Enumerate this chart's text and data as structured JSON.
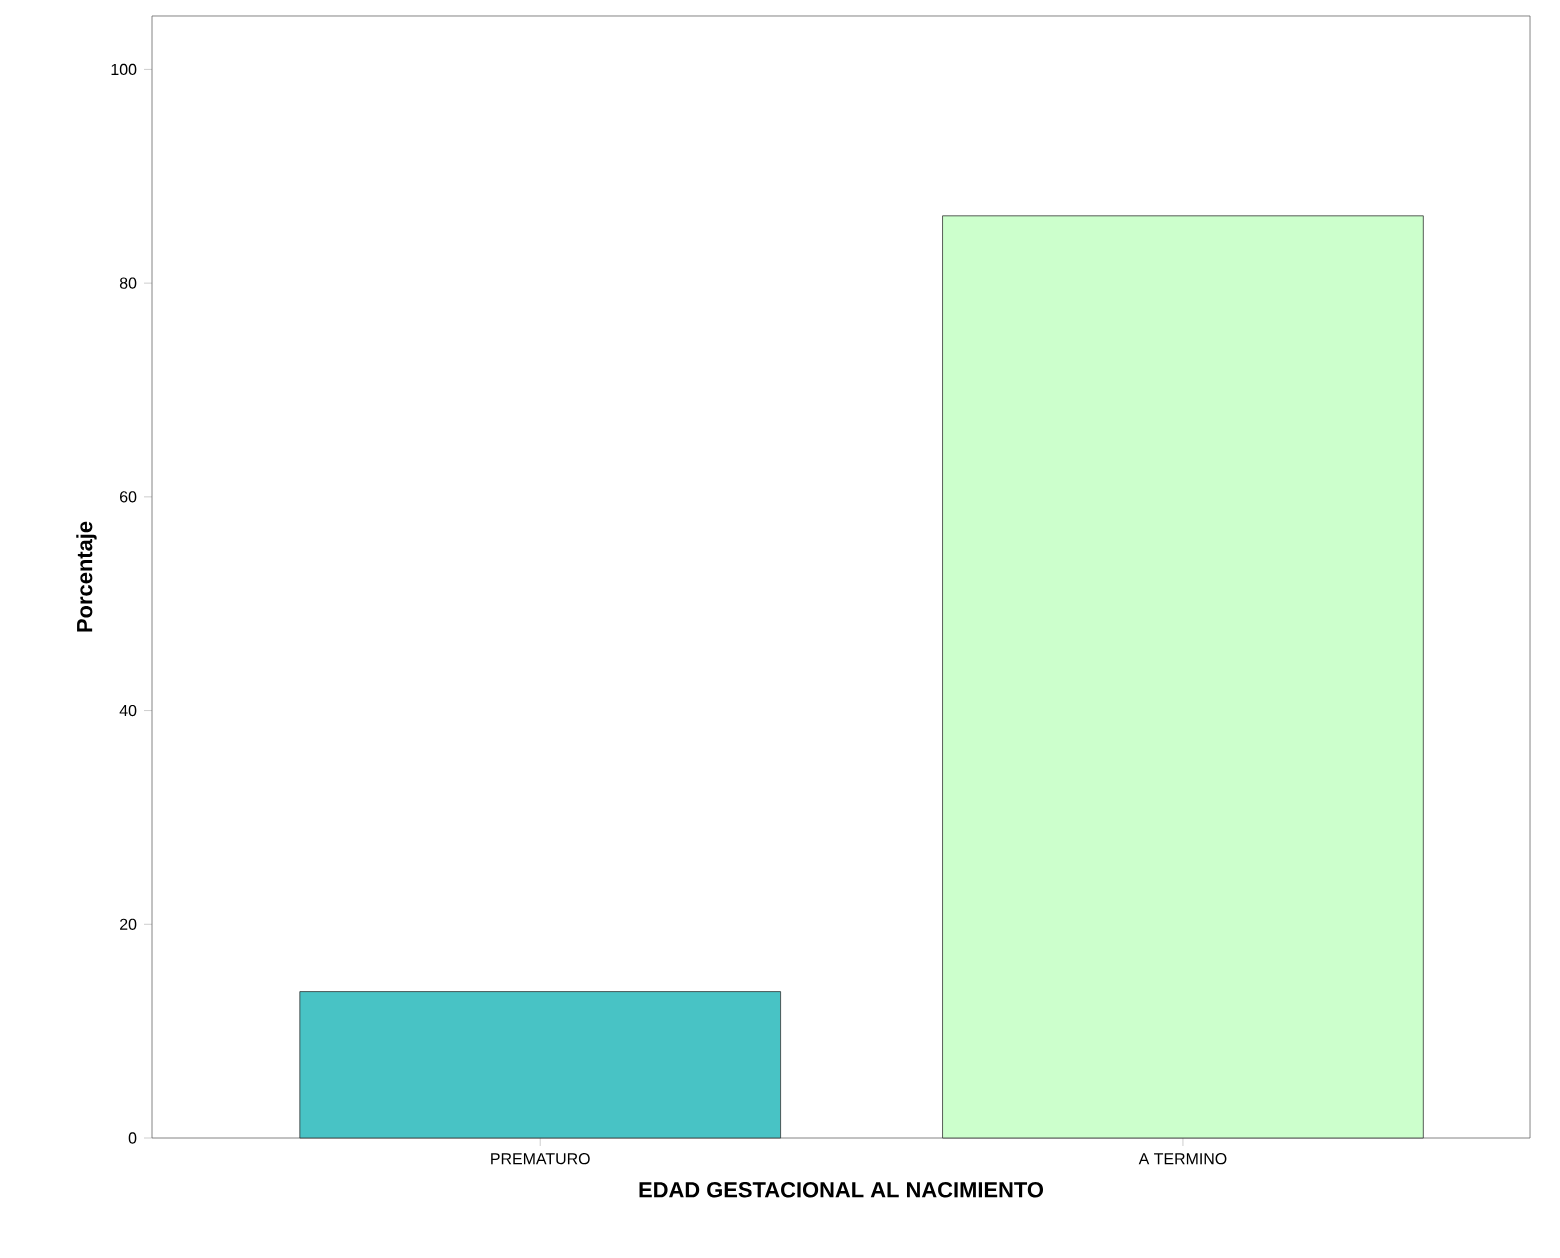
{
  "chart_data": {
    "type": "bar",
    "xlabel": "EDAD GESTACIONAL AL NACIMIENTO",
    "ylabel": "Porcentaje",
    "categories": [
      "PREMATURO",
      "A TERMINO"
    ],
    "values": [
      13.7,
      86.3
    ],
    "colors": [
      "#48c3c5",
      "#ccffcc"
    ],
    "ylim": [
      0,
      105
    ],
    "yticks": [
      0,
      20,
      40,
      60,
      80,
      100
    ],
    "grid": false
  }
}
